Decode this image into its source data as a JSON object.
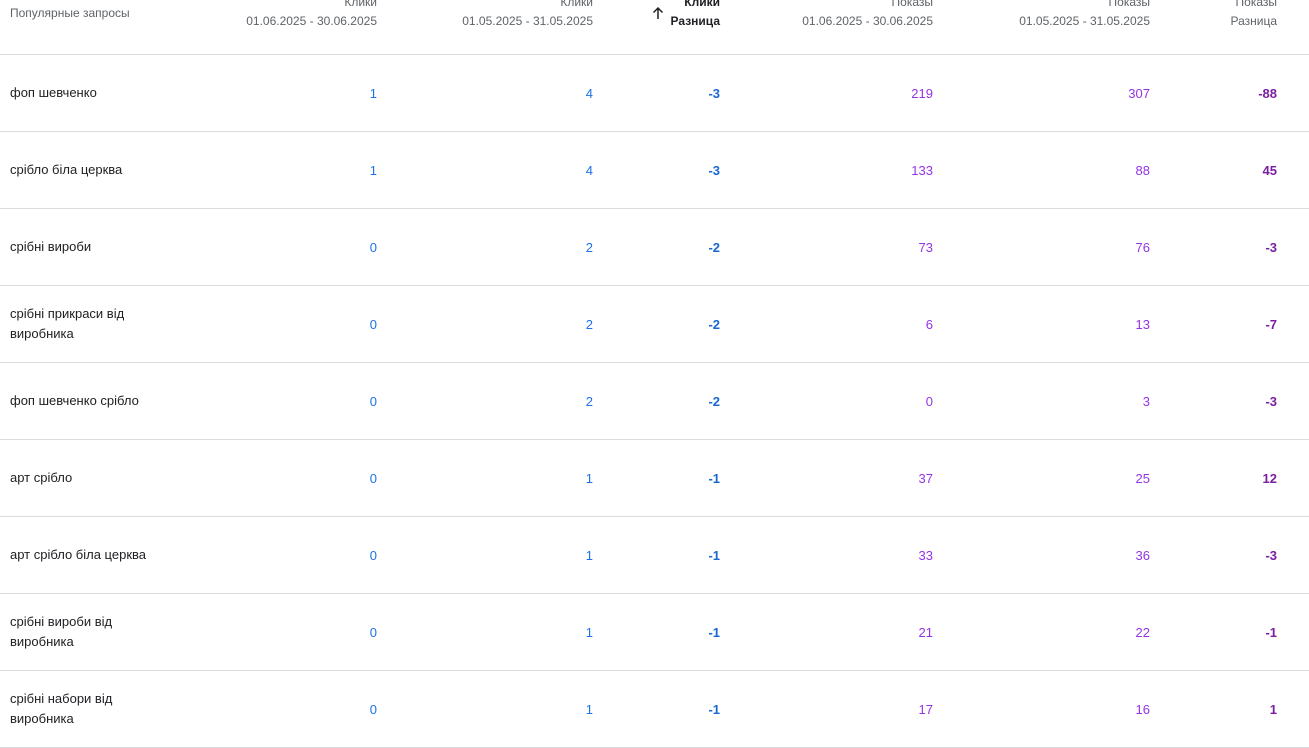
{
  "header": {
    "query": "Популярные запросы",
    "col1": {
      "l1": "Клики",
      "l2": "01.06.2025 - 30.06.2025"
    },
    "col2": {
      "l1": "Клики",
      "l2": "01.05.2025 - 31.05.2025"
    },
    "col3": {
      "l1": "Клики",
      "l2": "Разница"
    },
    "col4": {
      "l1": "Показы",
      "l2": "01.06.2025 - 30.06.2025"
    },
    "col5": {
      "l1": "Показы",
      "l2": "01.05.2025 - 31.05.2025"
    },
    "col6": {
      "l1": "Показы",
      "l2": "Разница"
    }
  },
  "sort_icon": "arrow-up-icon",
  "colors": {
    "clicks": "#1a73e8",
    "impressions": "#9334e6",
    "divider": "#dadce0"
  },
  "rows": [
    {
      "query": "фоп шевченко",
      "clicks_cur": "1",
      "clicks_prev": "4",
      "clicks_diff": "-3",
      "imp_cur": "219",
      "imp_prev": "307",
      "imp_diff": "-88"
    },
    {
      "query": "срібло біла церква",
      "clicks_cur": "1",
      "clicks_prev": "4",
      "clicks_diff": "-3",
      "imp_cur": "133",
      "imp_prev": "88",
      "imp_diff": "45"
    },
    {
      "query": "срібні вироби",
      "clicks_cur": "0",
      "clicks_prev": "2",
      "clicks_diff": "-2",
      "imp_cur": "73",
      "imp_prev": "76",
      "imp_diff": "-3"
    },
    {
      "query": "срібні прикраси від виробника",
      "clicks_cur": "0",
      "clicks_prev": "2",
      "clicks_diff": "-2",
      "imp_cur": "6",
      "imp_prev": "13",
      "imp_diff": "-7"
    },
    {
      "query": "фоп шевченко срібло",
      "clicks_cur": "0",
      "clicks_prev": "2",
      "clicks_diff": "-2",
      "imp_cur": "0",
      "imp_prev": "3",
      "imp_diff": "-3"
    },
    {
      "query": "арт срібло",
      "clicks_cur": "0",
      "clicks_prev": "1",
      "clicks_diff": "-1",
      "imp_cur": "37",
      "imp_prev": "25",
      "imp_diff": "12"
    },
    {
      "query": "арт срібло біла церква",
      "clicks_cur": "0",
      "clicks_prev": "1",
      "clicks_diff": "-1",
      "imp_cur": "33",
      "imp_prev": "36",
      "imp_diff": "-3"
    },
    {
      "query": "срібні вироби від виробника",
      "clicks_cur": "0",
      "clicks_prev": "1",
      "clicks_diff": "-1",
      "imp_cur": "21",
      "imp_prev": "22",
      "imp_diff": "-1"
    },
    {
      "query": "срібні набори від виробника",
      "clicks_cur": "0",
      "clicks_prev": "1",
      "clicks_diff": "-1",
      "imp_cur": "17",
      "imp_prev": "16",
      "imp_diff": "1"
    }
  ]
}
